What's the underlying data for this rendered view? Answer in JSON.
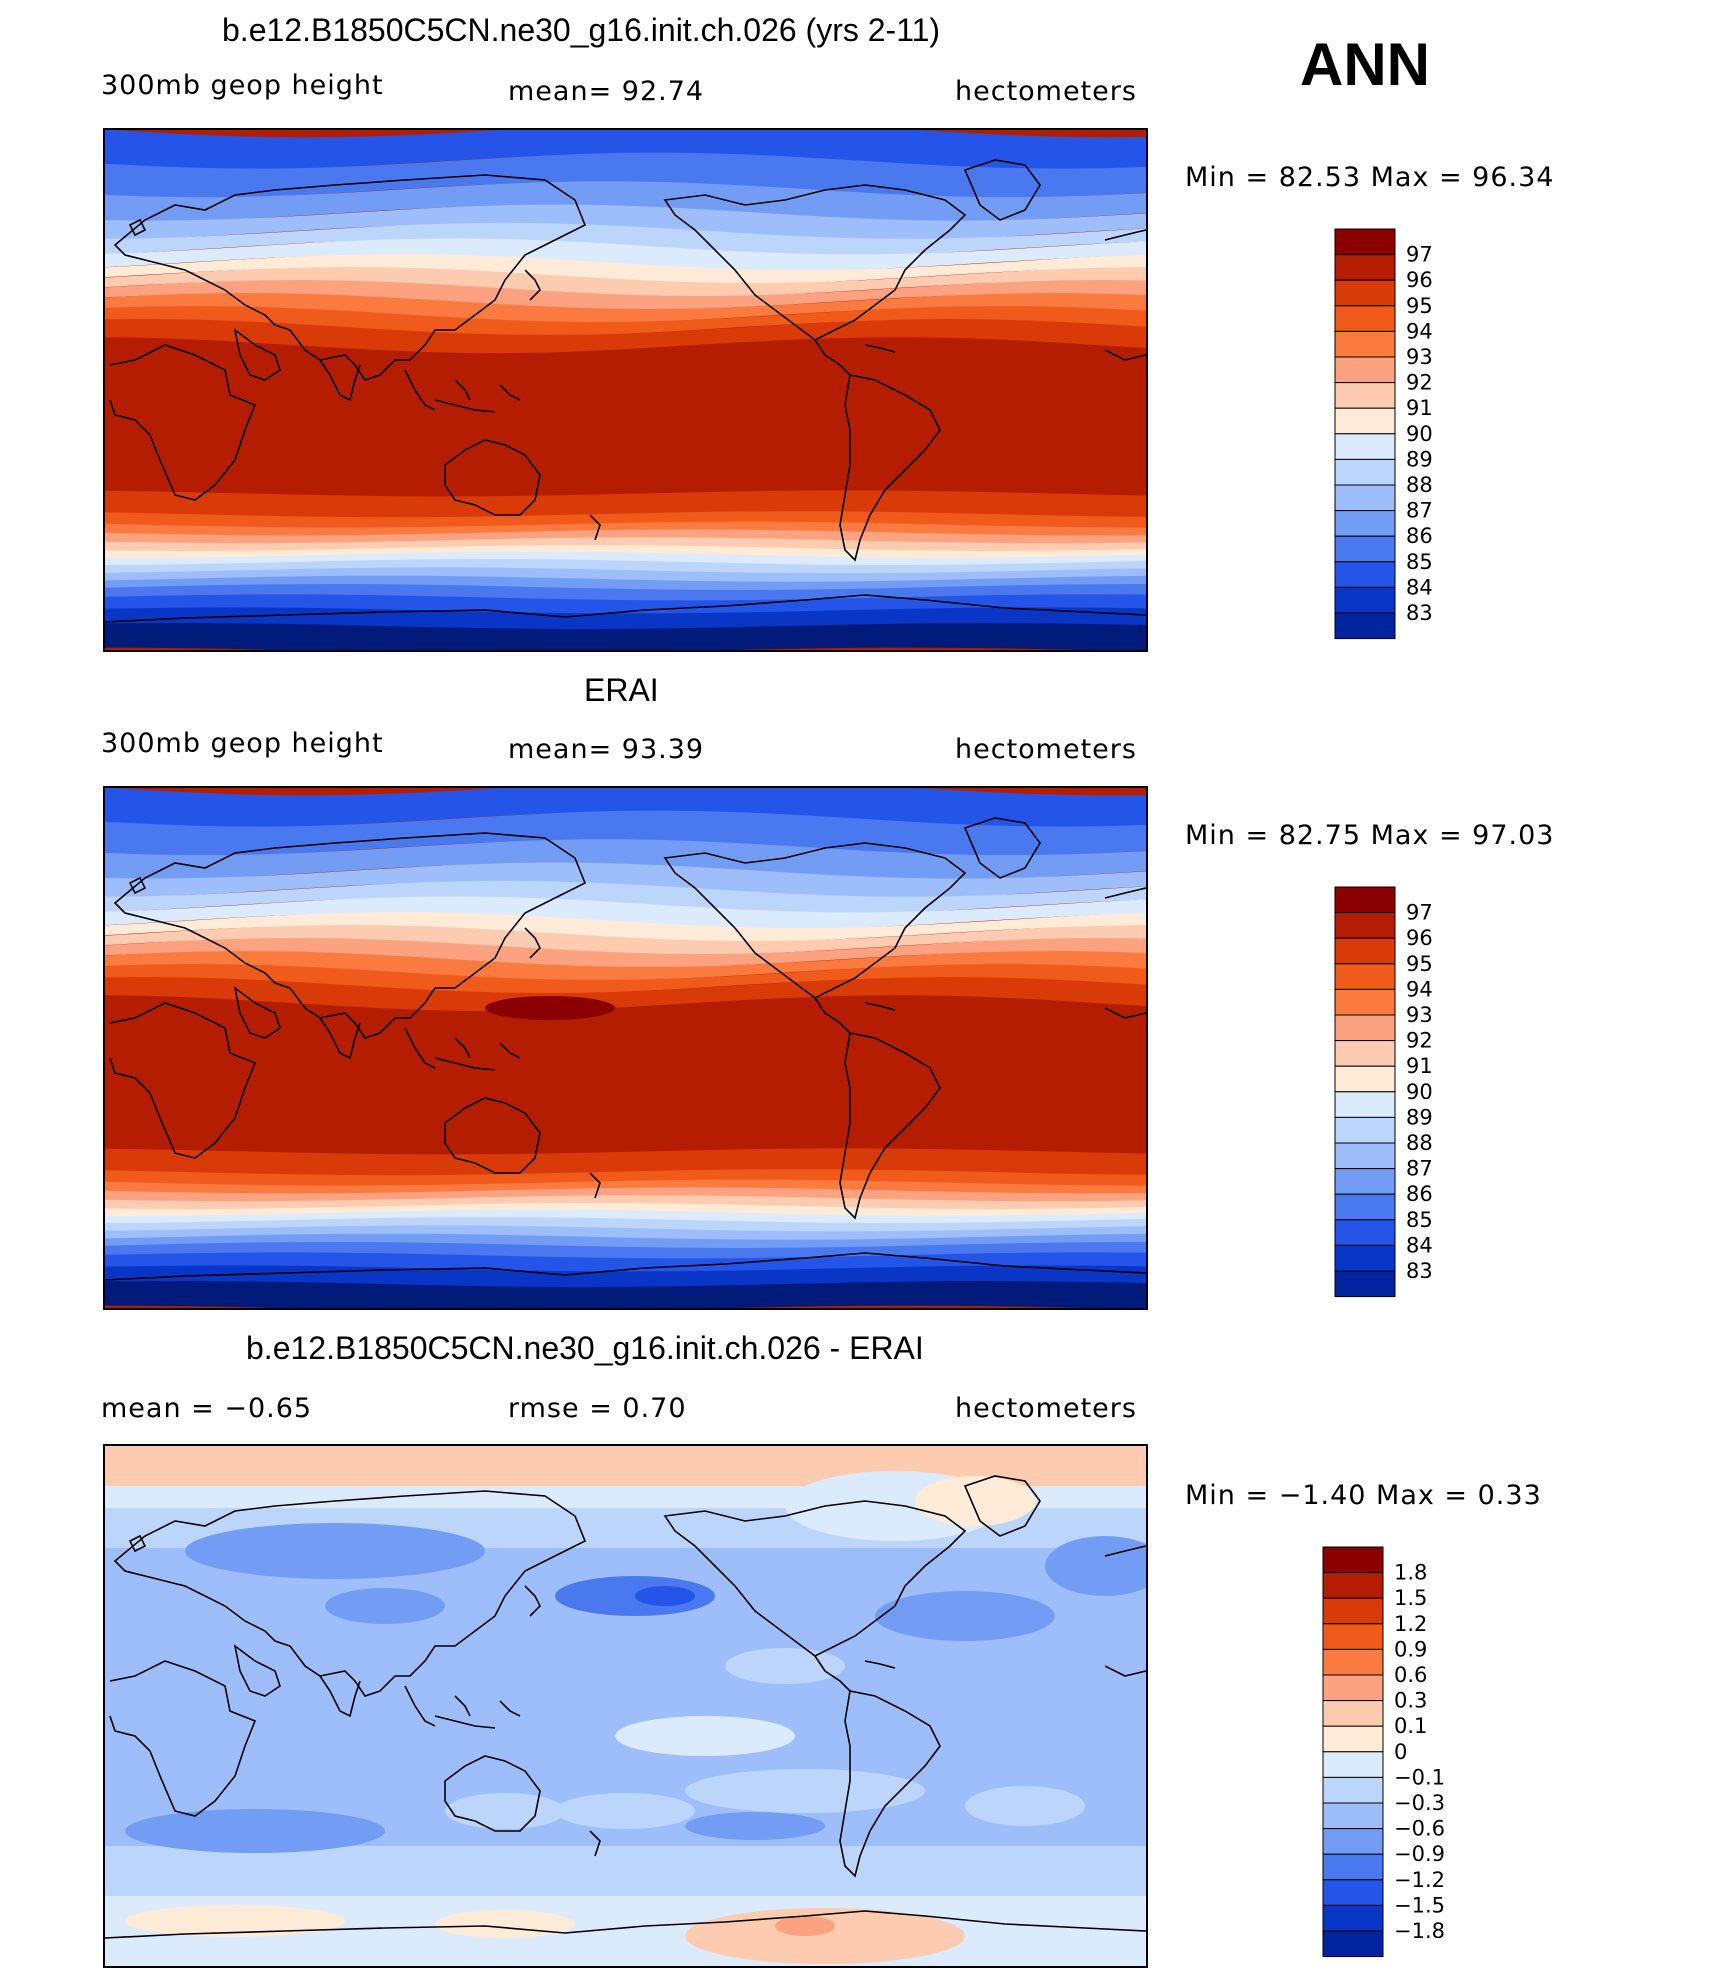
{
  "season_label": "ANN",
  "chart_data": [
    {
      "type": "heatmap",
      "title": "b.e12.B1850C5CN.ne30_g16.init.ch.026 (yrs 2-11)",
      "left_label": "300mb geop height",
      "center_label": "mean=   92.74",
      "right_label": "hectometers",
      "minmax_label": "Min =   82.53 Max =   96.34",
      "min": 82.53,
      "max": 96.34,
      "mean": 92.74,
      "units": "hectometers",
      "levels": [
        "97",
        "96",
        "95",
        "94",
        "93",
        "92",
        "91",
        "90",
        "89",
        "88",
        "87",
        "86",
        "85",
        "84",
        "83"
      ],
      "colors": [
        "#8b0000",
        "#b51d00",
        "#d93b08",
        "#f05a1a",
        "#fb7a40",
        "#fca281",
        "#fdcbb0",
        "#fdebd8",
        "#dbeafc",
        "#bcd5fb",
        "#9dbefa",
        "#739df5",
        "#4a78ef",
        "#2454e8",
        "#0a36c7",
        "#02249e",
        "#001b7a"
      ]
    },
    {
      "type": "heatmap",
      "title": "ERAI",
      "left_label": "300mb geop height",
      "center_label": "mean=   93.39",
      "right_label": "hectometers",
      "minmax_label": "Min =   82.75 Max =   97.03",
      "min": 82.75,
      "max": 97.03,
      "mean": 93.39,
      "units": "hectometers",
      "levels": [
        "97",
        "96",
        "95",
        "94",
        "93",
        "92",
        "91",
        "90",
        "89",
        "88",
        "87",
        "86",
        "85",
        "84",
        "83"
      ],
      "colors": [
        "#8b0000",
        "#b51d00",
        "#d93b08",
        "#f05a1a",
        "#fb7a40",
        "#fca281",
        "#fdcbb0",
        "#fdebd8",
        "#dbeafc",
        "#bcd5fb",
        "#9dbefa",
        "#739df5",
        "#4a78ef",
        "#2454e8",
        "#0a36c7",
        "#02249e",
        "#001b7a"
      ]
    },
    {
      "type": "heatmap",
      "title": "b.e12.B1850C5CN.ne30_g16.init.ch.026 - ERAI",
      "left_label": "mean =   −0.65",
      "center_label": "rmse =    0.70",
      "right_label": "hectometers",
      "minmax_label": "Min =   −1.40 Max =    0.33",
      "min": -1.4,
      "max": 0.33,
      "mean": -0.65,
      "rmse": 0.7,
      "units": "hectometers",
      "levels": [
        "1.8",
        "1.5",
        "1.2",
        "0.9",
        "0.6",
        "0.3",
        "0.1",
        "0",
        "−0.1",
        "−0.3",
        "−0.6",
        "−0.9",
        "−1.2",
        "−1.5",
        "−1.8"
      ],
      "colors": [
        "#8b0000",
        "#b51d00",
        "#d93b08",
        "#f05a1a",
        "#fb7a40",
        "#fca281",
        "#fdcbb0",
        "#fdebd8",
        "#dbeafc",
        "#bcd5fb",
        "#9dbefa",
        "#739df5",
        "#4a78ef",
        "#2454e8",
        "#0a36c7",
        "#02249e",
        "#001b7a"
      ]
    }
  ]
}
